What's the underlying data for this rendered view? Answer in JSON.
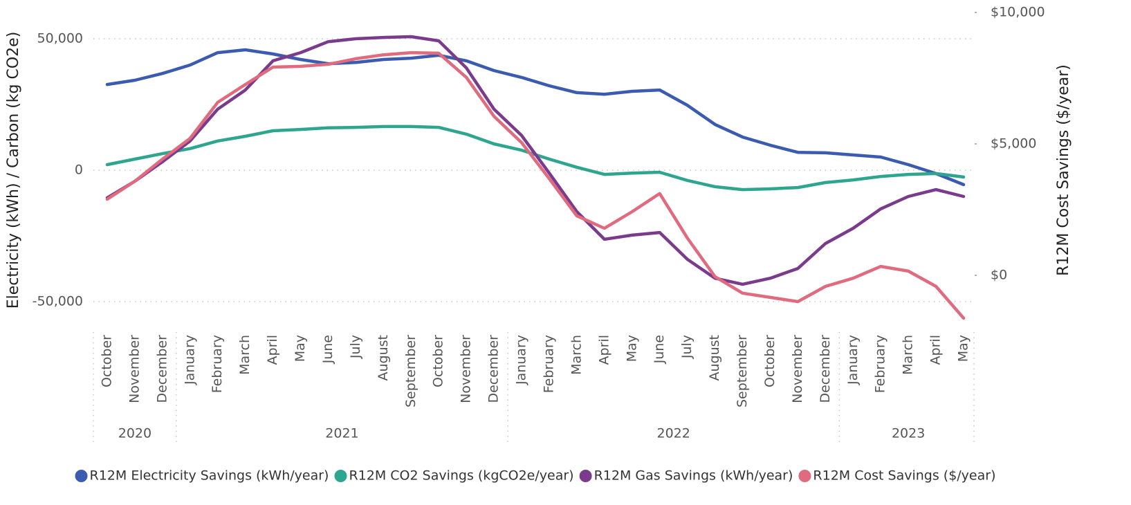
{
  "chart_data": {
    "type": "line",
    "ylabel": "Electricity (kWh) / Carbon (kg CO2e)",
    "y2label": "R12M Cost Savings ($/year)",
    "categories": [
      "October",
      "November",
      "December",
      "January",
      "February",
      "March",
      "April",
      "May",
      "June",
      "July",
      "August",
      "September",
      "October",
      "November",
      "December",
      "January",
      "February",
      "March",
      "April",
      "May",
      "June",
      "July",
      "August",
      "September",
      "October",
      "November",
      "December",
      "January",
      "February",
      "March",
      "April",
      "May"
    ],
    "x_groups": [
      {
        "label": "2020",
        "count": 3
      },
      {
        "label": "2021",
        "count": 12
      },
      {
        "label": "2022",
        "count": 12
      },
      {
        "label": "2023",
        "count": 5
      }
    ],
    "ylim": [
      -60000,
      60000
    ],
    "yticks": [
      {
        "value": -50000,
        "label": "-50,000"
      },
      0,
      {
        "value": 50000,
        "label": "50,000"
      }
    ],
    "y2lim": [
      -2000,
      10000
    ],
    "y2ticks": [
      {
        "value": 0,
        "label": "$0"
      },
      {
        "value": 5000,
        "label": "$5,000"
      },
      {
        "value": 10000,
        "label": "$10,000"
      }
    ],
    "grid": true,
    "legend": "bottom",
    "series": [
      {
        "name": "R12M Electricity Savings (kWh/year)",
        "color": "#3a5bb0",
        "values": [
          32600,
          34200,
          36800,
          40000,
          44700,
          45800,
          44200,
          42100,
          40500,
          41000,
          42100,
          42600,
          43700,
          41600,
          37900,
          35300,
          32100,
          29500,
          28900,
          30000,
          30500,
          24700,
          17400,
          12600,
          9500,
          6800,
          6600,
          5800,
          5000,
          2100,
          -1300,
          -5500
        ]
      },
      {
        "name": "R12M CO2 Savings (kgCO2e/year)",
        "color": "#2ea58f",
        "values": [
          2100,
          4200,
          6300,
          8200,
          11100,
          12900,
          15000,
          15500,
          16100,
          16300,
          16600,
          16600,
          16300,
          13700,
          10000,
          7600,
          4200,
          1100,
          -1600,
          -1100,
          -800,
          -3900,
          -6300,
          -7400,
          -7100,
          -6600,
          -4700,
          -3700,
          -2400,
          -1600,
          -1300,
          -2600
        ]
      },
      {
        "name": "R12M Gas Savings (kWh/year)",
        "color": "#7b3b8c",
        "values": [
          -10500,
          -4200,
          3200,
          11100,
          23200,
          30500,
          41600,
          44700,
          48900,
          50000,
          50500,
          50800,
          49200,
          38900,
          23200,
          13200,
          -1100,
          -15800,
          -26300,
          -24700,
          -23700,
          -33900,
          -41100,
          -43400,
          -41100,
          -37400,
          -27900,
          -22100,
          -14700,
          -10000,
          -7400,
          -10000
        ]
      },
      {
        "name": "R12M Cost Savings ($/year)",
        "color": "#e06a7e",
        "axis": "y2",
        "values": [
          2895,
          3580,
          4420,
          5210,
          6580,
          7260,
          7920,
          7950,
          8030,
          8240,
          8390,
          8470,
          8450,
          7530,
          6050,
          5050,
          3680,
          2260,
          1790,
          2420,
          3110,
          1420,
          -50,
          -680,
          -840,
          -1000,
          -420,
          -110,
          340,
          160,
          -420,
          -1630
        ]
      }
    ]
  }
}
